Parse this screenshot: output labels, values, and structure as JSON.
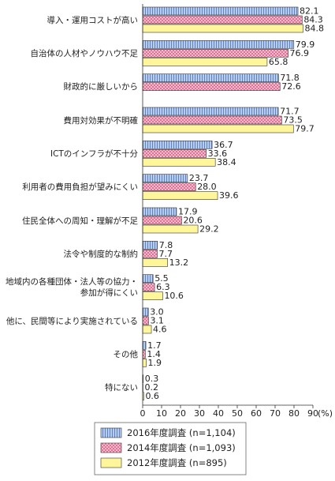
{
  "chart_data": {
    "type": "bar",
    "orientation": "horizontal",
    "categories": [
      "導入・運用コストが高い",
      "自治体の人材やノウハウ不足",
      "財政的に厳しいから",
      "費用対効果が不明確",
      "ICTのインフラが不十分",
      "利用者の費用負担が望みにくい",
      "住民全体への周知・理解が不足",
      "法令や制度的な制約",
      "地域内の各種団体・法人等の協力・\n参加が得にくい",
      "他に、民間等により実施されている",
      "その他",
      "特にない"
    ],
    "series": [
      {
        "name": "2016年度調査 (n=1,104)",
        "color": "#b7cdee",
        "values": [
          82.1,
          79.9,
          71.8,
          71.7,
          36.7,
          23.7,
          17.9,
          7.8,
          5.5,
          3.0,
          1.7,
          0.3
        ],
        "value_labels": [
          "82.1",
          "79.9",
          "71.8",
          "71.7",
          "36.7",
          "23.7",
          "17.9",
          "7.8",
          "5.5",
          "3.0",
          "1.7",
          "0.3"
        ]
      },
      {
        "name": "2014年度調査 (n=1,093)",
        "color": "#f6c6d6",
        "values": [
          84.3,
          76.9,
          72.6,
          73.5,
          33.6,
          28.0,
          20.6,
          7.7,
          6.3,
          3.1,
          1.4,
          0.2
        ],
        "value_labels": [
          "84.3",
          "76.9",
          "72.6",
          "73.5",
          "33.6",
          "28.0",
          "20.6",
          "7.7",
          "6.3",
          "3.1",
          "1.4",
          "0.2"
        ]
      },
      {
        "name": "2012年度調査 (n=895)",
        "color": "#fff59a",
        "values": [
          84.8,
          65.8,
          null,
          79.7,
          38.4,
          39.6,
          29.2,
          13.2,
          10.6,
          4.6,
          1.9,
          0.6
        ],
        "value_labels": [
          "84.8",
          "65.8",
          null,
          "79.7",
          "38.4",
          "39.6",
          "29.2",
          "13.2",
          "10.6",
          "4.6",
          "1.9",
          "0.6"
        ]
      }
    ],
    "xlim": [
      0,
      90
    ],
    "xticks": [
      0,
      10,
      20,
      30,
      40,
      50,
      60,
      70,
      80,
      90
    ],
    "x_unit": "(%)",
    "legend": "bottom"
  }
}
